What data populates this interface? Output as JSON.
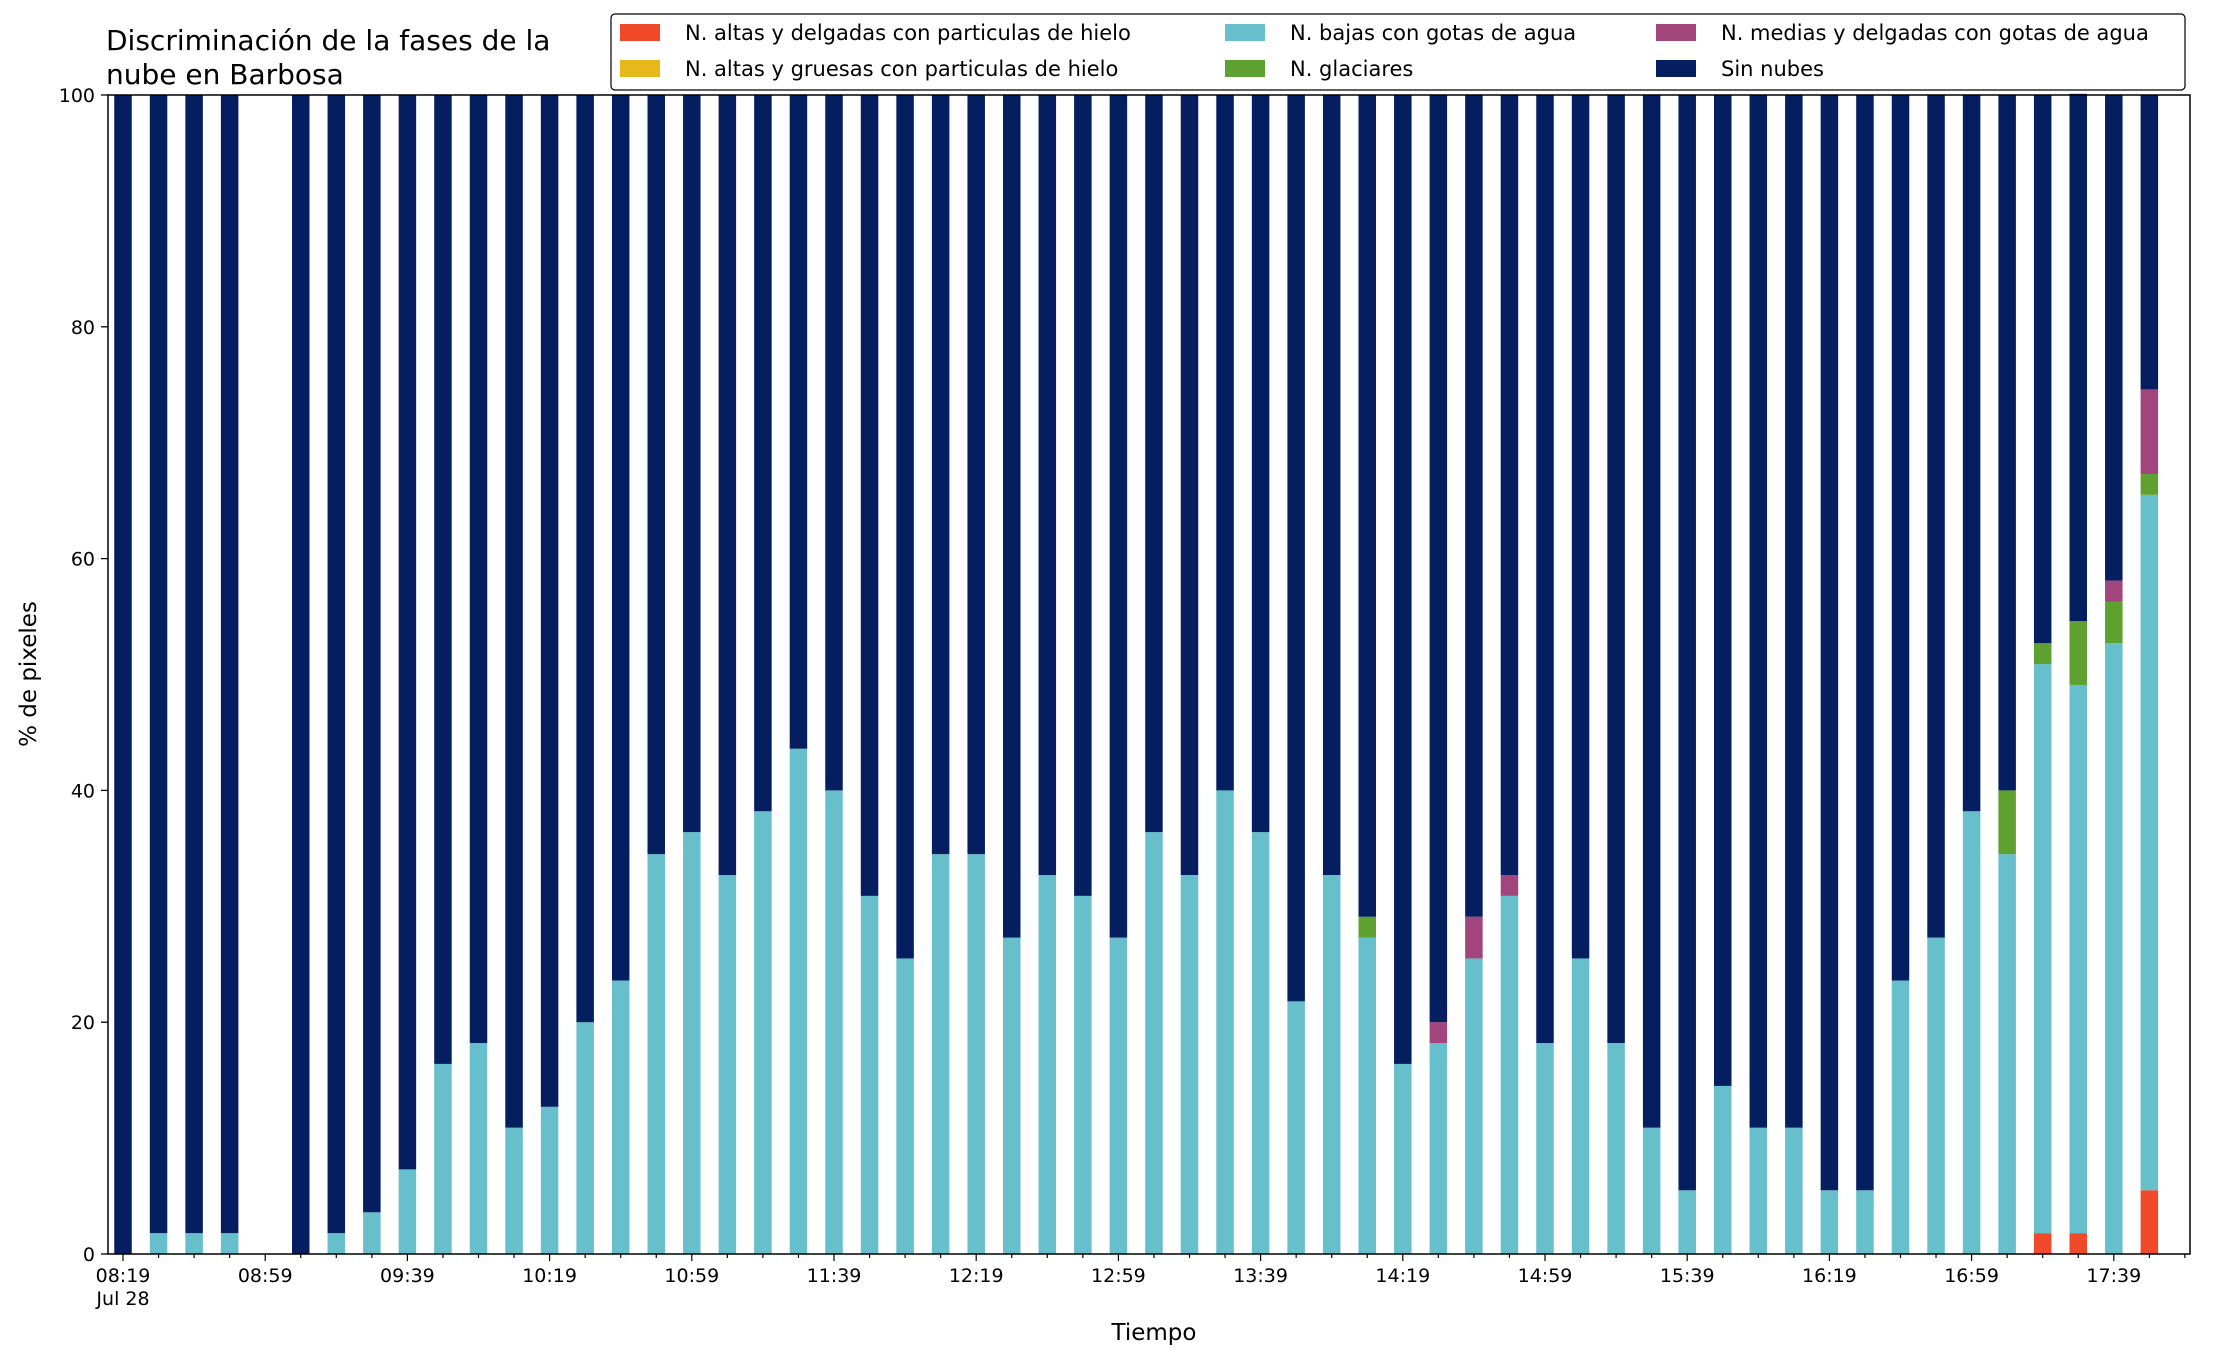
{
  "chart_data": {
    "type": "bar",
    "stacked": true,
    "title_lines": [
      "Discriminación de la fases de la",
      "nube en Barbosa"
    ],
    "xlabel": "Tiempo",
    "ylabel": "% de pixeles",
    "ylim": [
      0,
      100
    ],
    "yticks": [
      "0",
      "20",
      "40",
      "60",
      "80",
      "100"
    ],
    "xticks": [
      {
        "index": 0,
        "label": "08:19",
        "sublabel": "Jul 28"
      },
      {
        "index": 4,
        "label": "08:59"
      },
      {
        "index": 8,
        "label": "09:39"
      },
      {
        "index": 12,
        "label": "10:19"
      },
      {
        "index": 16,
        "label": "10:59"
      },
      {
        "index": 20,
        "label": "11:39"
      },
      {
        "index": 24,
        "label": "12:19"
      },
      {
        "index": 28,
        "label": "12:59"
      },
      {
        "index": 32,
        "label": "13:39"
      },
      {
        "index": 36,
        "label": "14:19"
      },
      {
        "index": 40,
        "label": "14:59"
      },
      {
        "index": 44,
        "label": "15:39"
      },
      {
        "index": 48,
        "label": "16:19"
      },
      {
        "index": 52,
        "label": "16:59"
      },
      {
        "index": 56,
        "label": "17:39"
      }
    ],
    "grid": false,
    "legend_position": "top-right",
    "categories": [
      "08:19",
      "08:29",
      "08:39",
      "08:49",
      "08:59",
      "09:09",
      "09:19",
      "09:29",
      "09:39",
      "09:49",
      "09:59",
      "10:09",
      "10:19",
      "10:29",
      "10:39",
      "10:49",
      "10:59",
      "11:09",
      "11:19",
      "11:29",
      "11:39",
      "11:49",
      "11:59",
      "12:09",
      "12:19",
      "12:29",
      "12:39",
      "12:49",
      "12:59",
      "13:09",
      "13:19",
      "13:29",
      "13:39",
      "13:49",
      "13:59",
      "14:09",
      "14:19",
      "14:29",
      "14:39",
      "14:49",
      "14:59",
      "15:09",
      "15:19",
      "15:29",
      "15:39",
      "15:49",
      "15:59",
      "16:09",
      "16:19",
      "16:29",
      "16:39",
      "16:49",
      "16:59",
      "17:09",
      "17:19",
      "17:29",
      "17:39",
      "17:49"
    ],
    "series": [
      {
        "name": "N. altas y delgadas con particulas de hielo",
        "color": "#f04a2b",
        "values": [
          0,
          0,
          0,
          0,
          0,
          0,
          0,
          0,
          0,
          0,
          0,
          0,
          0,
          0,
          0,
          0,
          0,
          0,
          0,
          0,
          0,
          0,
          0,
          0,
          0,
          0,
          0,
          0,
          0,
          0,
          0,
          0,
          0,
          0,
          0,
          0,
          0,
          0,
          0,
          0,
          0,
          0,
          0,
          0,
          0,
          0,
          0,
          0,
          0,
          0,
          0,
          0,
          0,
          0,
          1.8,
          1.8,
          0,
          5.5
        ]
      },
      {
        "name": "N. altas y gruesas con particulas de hielo",
        "color": "#e6b81b",
        "values": [
          0,
          0,
          0,
          0,
          0,
          0,
          0,
          0,
          0,
          0,
          0,
          0,
          0,
          0,
          0,
          0,
          0,
          0,
          0,
          0,
          0,
          0,
          0,
          0,
          0,
          0,
          0,
          0,
          0,
          0,
          0,
          0,
          0,
          0,
          0,
          0,
          0,
          0,
          0,
          0,
          0,
          0,
          0,
          0,
          0,
          0,
          0,
          0,
          0,
          0,
          0,
          0,
          0,
          0,
          0,
          0,
          0,
          0
        ]
      },
      {
        "name": "N. bajas con gotas de agua",
        "color": "#66bfcb",
        "values": [
          0,
          1.8,
          1.8,
          1.8,
          0,
          0,
          1.8,
          3.6,
          7.3,
          16.4,
          18.2,
          10.9,
          12.7,
          20,
          23.6,
          34.5,
          36.4,
          32.7,
          38.2,
          43.6,
          40,
          30.9,
          25.5,
          34.5,
          34.5,
          27.3,
          32.7,
          30.9,
          27.3,
          36.4,
          32.7,
          40,
          36.4,
          21.8,
          32.7,
          27.3,
          16.4,
          18.2,
          25.5,
          30.9,
          18.2,
          25.5,
          18.2,
          10.9,
          5.5,
          14.5,
          10.9,
          10.9,
          5.5,
          5.5,
          23.6,
          27.3,
          38.2,
          34.5,
          49.1,
          47.3,
          52.7,
          60
        ]
      },
      {
        "name": "N. glaciares",
        "color": "#5ea131",
        "values": [
          0,
          0,
          0,
          0,
          0,
          0,
          0,
          0,
          0,
          0,
          0,
          0,
          0,
          0,
          0,
          0,
          0,
          0,
          0,
          0,
          0,
          0,
          0,
          0,
          0,
          0,
          0,
          0,
          0,
          0,
          0,
          0,
          0,
          0,
          0,
          1.8,
          0,
          0,
          0,
          0,
          0,
          0,
          0,
          0,
          0,
          0,
          0,
          0,
          0,
          0,
          0,
          0,
          0,
          5.5,
          1.8,
          5.5,
          3.6,
          1.8
        ]
      },
      {
        "name": "N. medias y delgadas con gotas de agua",
        "color": "#a3457d",
        "values": [
          0,
          0,
          0,
          0,
          0,
          0,
          0,
          0,
          0,
          0,
          0,
          0,
          0,
          0,
          0,
          0,
          0,
          0,
          0,
          0,
          0,
          0,
          0,
          0,
          0,
          0,
          0,
          0,
          0,
          0,
          0,
          0,
          0,
          0,
          0,
          0,
          0,
          1.8,
          3.6,
          1.8,
          0,
          0,
          0,
          0,
          0,
          0,
          0,
          0,
          0,
          0,
          0,
          0,
          0,
          0,
          0,
          0,
          1.8,
          7.3
        ]
      },
      {
        "name": "Sin nubes",
        "color": "#041e5f",
        "values": [
          100,
          98.2,
          98.2,
          98.2,
          0,
          100,
          98.2,
          96.4,
          92.7,
          83.6,
          81.8,
          89.1,
          87.3,
          80,
          76.4,
          65.5,
          63.6,
          67.3,
          61.8,
          56.4,
          60,
          69.1,
          74.5,
          65.5,
          65.5,
          72.7,
          67.3,
          69.1,
          72.7,
          63.6,
          67.3,
          60,
          63.6,
          78.2,
          67.3,
          70.9,
          83.6,
          80,
          70.9,
          67.3,
          81.8,
          74.5,
          81.8,
          89.1,
          94.5,
          85.5,
          89.1,
          89.1,
          94.5,
          94.5,
          76.4,
          72.7,
          61.8,
          60,
          47.3,
          45.5,
          41.9,
          25.4
        ]
      }
    ]
  }
}
